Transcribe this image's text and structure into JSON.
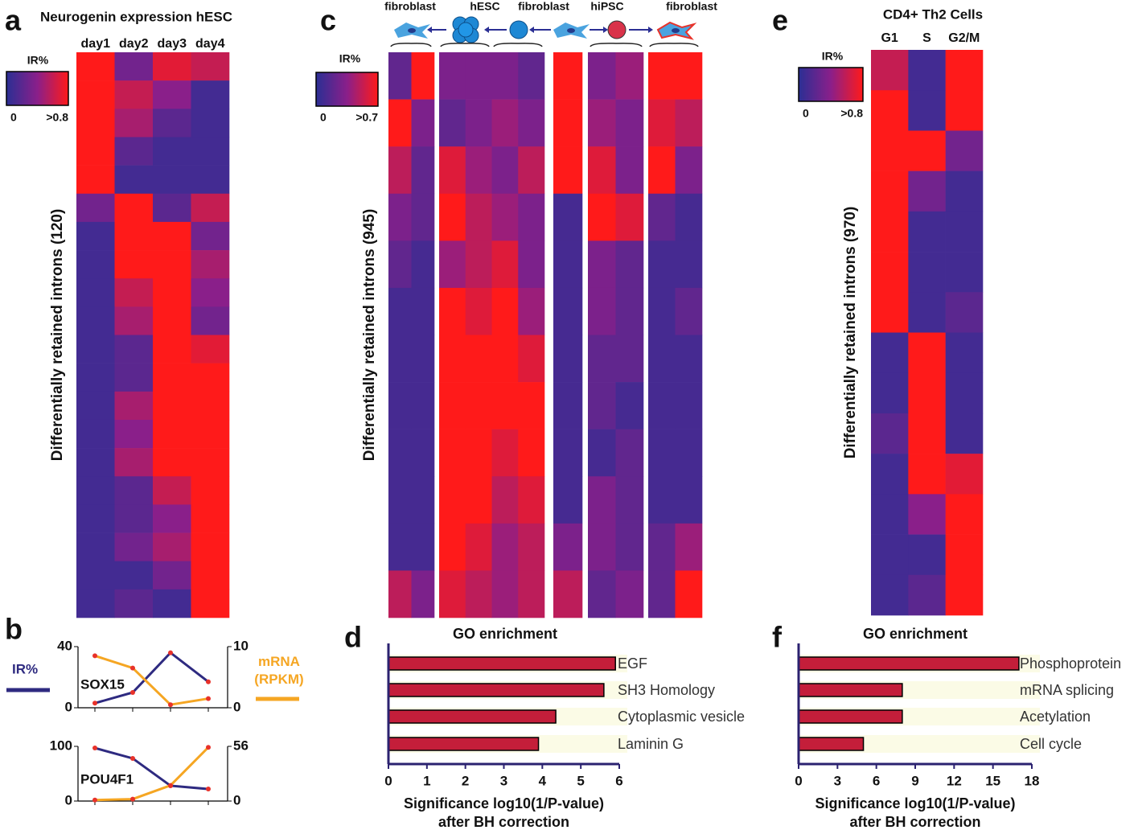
{
  "chart_data": [
    {
      "type": "heatmap",
      "panel": "a",
      "title": "Neurogenin expression hESC",
      "columns": [
        "day1",
        "day2",
        "day3",
        "day4"
      ],
      "ylabel": "Differentially retained introns (120)",
      "colorbar": {
        "title": "IR%",
        "clim": [
          0,
          0.8
        ],
        "ticks": [
          {
            "value": 0,
            "label": "0"
          },
          {
            "value": 0.8,
            "label": ">0.8"
          }
        ]
      },
      "rows": [
        [
          1,
          0.3,
          0.7,
          0.6
        ],
        [
          1,
          0.6,
          0.4,
          0.1
        ],
        [
          1,
          0.5,
          0.2,
          0.1
        ],
        [
          1,
          0.2,
          0.1,
          0.1
        ],
        [
          1,
          0.1,
          0.1,
          0.1
        ],
        [
          0.3,
          1,
          0.2,
          0.6
        ],
        [
          0.1,
          1,
          0.9,
          0.3
        ],
        [
          0.1,
          0.9,
          1,
          0.5
        ],
        [
          0.1,
          0.6,
          1,
          0.4
        ],
        [
          0.1,
          0.5,
          1,
          0.3
        ],
        [
          0.1,
          0.2,
          1,
          0.7
        ],
        [
          0.1,
          0.2,
          0.9,
          1
        ],
        [
          0.1,
          0.5,
          1,
          1
        ],
        [
          0.1,
          0.4,
          1,
          1
        ],
        [
          0.1,
          0.5,
          1,
          1
        ],
        [
          0.1,
          0.2,
          0.6,
          1
        ],
        [
          0.1,
          0.2,
          0.4,
          1
        ],
        [
          0.1,
          0.3,
          0.5,
          1
        ],
        [
          0.1,
          0.1,
          0.3,
          1
        ],
        [
          0.1,
          0.2,
          0.1,
          1
        ]
      ]
    },
    {
      "type": "heatmap",
      "panel": "c",
      "cell_types": [
        "fibroblast",
        "hESC",
        "fibroblast",
        "hiPSC",
        "fibroblast"
      ],
      "ylabel": "Differentially retained introns (945)",
      "colorbar": {
        "title": "IR%",
        "clim": [
          0,
          0.7
        ],
        "ticks": [
          {
            "value": 0,
            "label": "0"
          },
          {
            "value": 0.7,
            "label": ">0.7"
          }
        ]
      },
      "rows": [
        [
          [
            0.2,
            1
          ],
          [
            0.3,
            0.3,
            0.3,
            0.2
          ],
          [
            1
          ],
          [
            0.3,
            0.4
          ],
          [
            1,
            0.7
          ]
        ],
        [
          [
            0.9,
            0.3
          ],
          [
            0.2,
            0.3,
            0.4,
            0.3
          ],
          [
            1
          ],
          [
            0.4,
            0.3
          ],
          [
            0.6,
            0.5
          ]
        ],
        [
          [
            0.5,
            0.2
          ],
          [
            0.6,
            0.4,
            0.3,
            0.5
          ],
          [
            0.8
          ],
          [
            0.6,
            0.3
          ],
          [
            0.9,
            0.3
          ]
        ],
        [
          [
            0.3,
            0.2
          ],
          [
            0.7,
            0.5,
            0.4,
            0.3
          ],
          [
            0.1
          ],
          [
            0.8,
            0.6
          ],
          [
            0.2,
            0.1
          ]
        ],
        [
          [
            0.2,
            0.1
          ],
          [
            0.4,
            0.5,
            0.6,
            0.3
          ],
          [
            0.1
          ],
          [
            0.3,
            0.2
          ],
          [
            0.1,
            0.1
          ]
        ],
        [
          [
            0.1,
            0.1
          ],
          [
            0.8,
            0.6,
            0.9,
            0.4
          ],
          [
            0.1
          ],
          [
            0.3,
            0.2
          ],
          [
            0.1,
            0.2
          ]
        ],
        [
          [
            0.1,
            0.1
          ],
          [
            0.9,
            0.8,
            0.7,
            0.6
          ],
          [
            0.1
          ],
          [
            0.2,
            0.2
          ],
          [
            0.1,
            0.1
          ]
        ],
        [
          [
            0.1,
            0.1
          ],
          [
            0.8,
            0.9,
            0.8,
            0.7
          ],
          [
            0.1
          ],
          [
            0.2,
            0.1
          ],
          [
            0.1,
            0.1
          ]
        ],
        [
          [
            0.1,
            0.1
          ],
          [
            0.9,
            0.7,
            0.6,
            0.8
          ],
          [
            0.1
          ],
          [
            0.1,
            0.2
          ],
          [
            0.1,
            0.1
          ]
        ],
        [
          [
            0.1,
            0.1
          ],
          [
            0.8,
            0.7,
            0.5,
            0.6
          ],
          [
            0.1
          ],
          [
            0.3,
            0.2
          ],
          [
            0.1,
            0.1
          ]
        ],
        [
          [
            0.1,
            0.1
          ],
          [
            0.7,
            0.6,
            0.4,
            0.5
          ],
          [
            0.3
          ],
          [
            0.3,
            0.2
          ],
          [
            0.2,
            0.4
          ]
        ],
        [
          [
            0.5,
            0.3
          ],
          [
            0.6,
            0.5,
            0.4,
            0.5
          ],
          [
            0.5
          ],
          [
            0.2,
            0.3
          ],
          [
            0.2,
            0.9
          ]
        ]
      ]
    },
    {
      "type": "heatmap",
      "panel": "e",
      "title": "CD4+ Th2 Cells",
      "columns": [
        "G1",
        "S",
        "G2/M"
      ],
      "ylabel": "Differentially retained introns (970)",
      "colorbar": {
        "title": "IR%",
        "clim": [
          0,
          0.8
        ],
        "ticks": [
          {
            "value": 0,
            "label": "0"
          },
          {
            "value": 0.8,
            "label": ">0.8"
          }
        ]
      },
      "rows": [
        [
          0.6,
          0.1,
          1
        ],
        [
          1,
          0.1,
          0.8
        ],
        [
          1,
          0.8,
          0.3
        ],
        [
          1,
          0.3,
          0.1
        ],
        [
          1,
          0.1,
          0.1
        ],
        [
          1,
          0.1,
          0.1
        ],
        [
          1,
          0.1,
          0.2
        ],
        [
          0.1,
          1,
          0.1
        ],
        [
          0.1,
          1,
          0.1
        ],
        [
          0.2,
          1,
          0.1
        ],
        [
          0.1,
          1,
          0.7
        ],
        [
          0.1,
          0.4,
          1
        ],
        [
          0.1,
          0.1,
          1
        ],
        [
          0.1,
          0.2,
          1
        ]
      ]
    },
    {
      "type": "line",
      "panel": "b",
      "label": "SOX15",
      "categories": [
        null,
        null,
        null,
        null
      ],
      "ylim": [
        0,
        40
      ],
      "yticks": [
        0,
        40
      ],
      "y2lim": [
        0,
        10
      ],
      "y2ticks": [
        0,
        10
      ],
      "series": [
        {
          "name": "IR%",
          "color": "#2e2a80",
          "values": [
            3,
            10,
            36,
            17
          ]
        },
        {
          "name": "mRNA (RPKM)",
          "color": "#f5a623",
          "axis": "y2",
          "values": [
            8.5,
            6.5,
            0.5,
            1.5
          ]
        }
      ]
    },
    {
      "type": "line",
      "label": "POU4F1",
      "categories": [
        null,
        null,
        null,
        null
      ],
      "ylim": [
        0,
        100
      ],
      "yticks": [
        0,
        100
      ],
      "y2lim": [
        0,
        56
      ],
      "y2ticks": [
        0,
        56
      ],
      "series": [
        {
          "color": "#2e2a80",
          "values": [
            97,
            78,
            28,
            22
          ]
        },
        {
          "color": "#f5a623",
          "axis": "y2",
          "values": [
            1,
            2,
            16,
            55
          ]
        }
      ]
    },
    {
      "type": "bar",
      "panel": "d",
      "title": "GO enrichment",
      "categories": [
        "EGF",
        "SH3 Homology",
        "Cytoplasmic vesicle",
        "Laminin G"
      ],
      "values": [
        5.9,
        5.6,
        4.35,
        3.9
      ],
      "color": "#c41e3a",
      "xlim": [
        0,
        6
      ],
      "xticks": [
        0,
        1,
        2,
        3,
        4,
        5,
        6
      ],
      "xlabel": [
        "Significance log10(1/P-value)",
        "after BH correction"
      ]
    },
    {
      "type": "bar",
      "panel": "f",
      "title": "GO enrichment",
      "categories": [
        "Phosphoprotein",
        "mRNA splicing",
        "Acetylation",
        "Cell cycle"
      ],
      "values": [
        17,
        8,
        8,
        5
      ],
      "color": "#c41e3a",
      "xlim": [
        0,
        18
      ],
      "xticks": [
        0,
        3,
        6,
        9,
        12,
        15,
        18
      ],
      "xlabel": [
        "Significance log10(1/P-value)",
        "after BH correction"
      ]
    }
  ]
}
